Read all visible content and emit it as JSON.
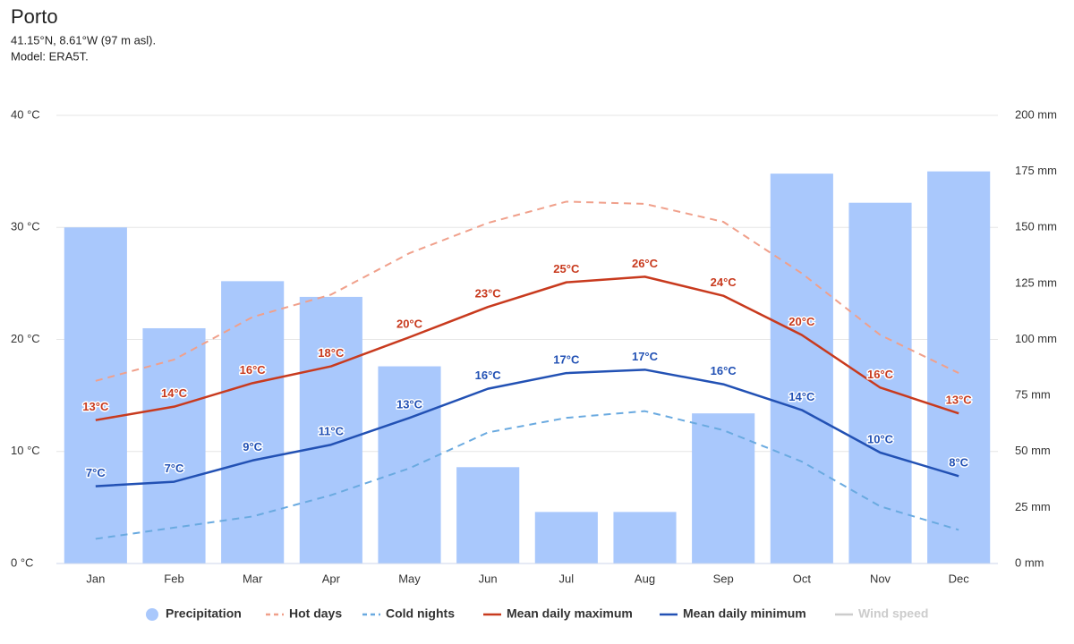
{
  "chart_data": {
    "type": "combo",
    "title": "Porto",
    "subtitle": [
      "41.15°N, 8.61°W (97 m asl).",
      "Model: ERA5T."
    ],
    "categories": [
      "Jan",
      "Feb",
      "Mar",
      "Apr",
      "May",
      "Jun",
      "Jul",
      "Aug",
      "Sep",
      "Oct",
      "Nov",
      "Dec"
    ],
    "ylim": [
      0,
      40
    ],
    "yticks": [
      {
        "value": 0,
        "label": "0 °C"
      },
      {
        "value": 10,
        "label": "10 °C"
      },
      {
        "value": 20,
        "label": "20 °C"
      },
      {
        "value": 30,
        "label": "30 °C"
      },
      {
        "value": 40,
        "label": "40 °C"
      }
    ],
    "y2lim": [
      0,
      200
    ],
    "y2ticks": [
      {
        "value": 0,
        "label": "0 mm"
      },
      {
        "value": 25,
        "label": "25 mm"
      },
      {
        "value": 50,
        "label": "50 mm"
      },
      {
        "value": 75,
        "label": "75 mm"
      },
      {
        "value": 100,
        "label": "100 mm"
      },
      {
        "value": 125,
        "label": "125 mm"
      },
      {
        "value": 150,
        "label": "150 mm"
      },
      {
        "value": 175,
        "label": "175 mm"
      },
      {
        "value": 200,
        "label": "200 mm"
      }
    ],
    "grid": true,
    "legend": "bottom",
    "series": [
      {
        "name": "Precipitation",
        "type": "bar",
        "axis": "y2",
        "color": "#a9c8fc",
        "values": [
          150,
          105,
          126,
          119,
          88,
          43,
          23,
          23,
          67,
          174,
          161,
          175
        ]
      },
      {
        "name": "Hot days",
        "type": "line",
        "dashed": true,
        "color": "#f0a08b",
        "values": [
          16.3,
          18.2,
          22,
          24,
          27.7,
          30.4,
          32.3,
          32.1,
          30.5,
          25.9,
          20.4,
          17
        ]
      },
      {
        "name": "Cold nights",
        "type": "line",
        "dashed": true,
        "color": "#6aaae0",
        "values": [
          2.2,
          3.2,
          4.2,
          6.1,
          8.5,
          11.7,
          13,
          13.6,
          11.9,
          9.1,
          5.1,
          3
        ]
      },
      {
        "name": "Mean daily maximum",
        "type": "line",
        "color": "#c83a1e",
        "values": [
          12.8,
          14,
          16.1,
          17.6,
          20.2,
          22.9,
          25.1,
          25.6,
          23.9,
          20.4,
          15.7,
          13.4
        ],
        "value_labels": [
          "13°C",
          "14°C",
          "16°C",
          "18°C",
          "20°C",
          "23°C",
          "25°C",
          "26°C",
          "24°C",
          "20°C",
          "16°C",
          "13°C"
        ]
      },
      {
        "name": "Mean daily minimum",
        "type": "line",
        "color": "#2251b4",
        "values": [
          6.9,
          7.3,
          9.2,
          10.6,
          13,
          15.6,
          17,
          17.3,
          16,
          13.7,
          9.9,
          7.8
        ],
        "value_labels": [
          "7°C",
          "7°C",
          "9°C",
          "11°C",
          "13°C",
          "16°C",
          "17°C",
          "17°C",
          "16°C",
          "14°C",
          "10°C",
          "8°C"
        ]
      },
      {
        "name": "Wind speed",
        "type": "line",
        "hidden": true,
        "color": "#aaaaaa",
        "values": [
          null,
          null,
          null,
          null,
          null,
          null,
          null,
          null,
          null,
          null,
          null,
          null
        ]
      }
    ]
  }
}
